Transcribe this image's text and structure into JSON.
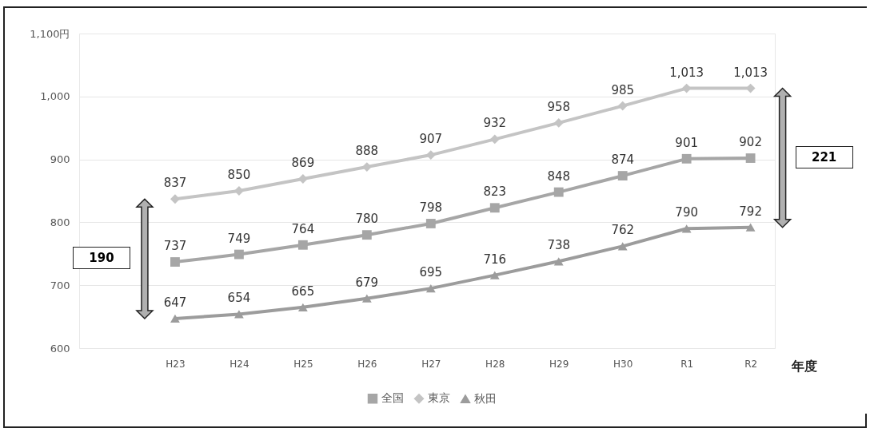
{
  "chart_data": {
    "type": "line",
    "xlabel": "年度",
    "categories": [
      "H23",
      "H24",
      "H25",
      "H26",
      "H27",
      "H28",
      "H29",
      "H30",
      "R1",
      "R2"
    ],
    "series": [
      {
        "name": "全国",
        "color": "#a6a6a6",
        "marker": "square",
        "values": [
          737,
          749,
          764,
          780,
          798,
          823,
          848,
          874,
          901,
          902
        ]
      },
      {
        "name": "東京",
        "color": "#c4c4c4",
        "marker": "diamond",
        "values": [
          837,
          850,
          869,
          888,
          907,
          932,
          958,
          985,
          1013,
          1013
        ],
        "value_labels": [
          "837",
          "850",
          "869",
          "888",
          "907",
          "932",
          "958",
          "985",
          "1,013",
          "1,013"
        ]
      },
      {
        "name": "秋田",
        "color": "#9c9c9c",
        "marker": "triangle",
        "values": [
          647,
          654,
          665,
          679,
          695,
          716,
          738,
          762,
          790,
          792
        ]
      }
    ],
    "ylim": [
      600,
      1100
    ],
    "yticks": [
      600,
      700,
      800,
      900,
      {
        "value": 1000,
        "label": "1,000"
      },
      {
        "value": 1100,
        "label": "1,100円"
      }
    ],
    "grid": "y",
    "legend": "bottom",
    "data_labels": true,
    "annotations": [
      "190",
      "221"
    ]
  }
}
